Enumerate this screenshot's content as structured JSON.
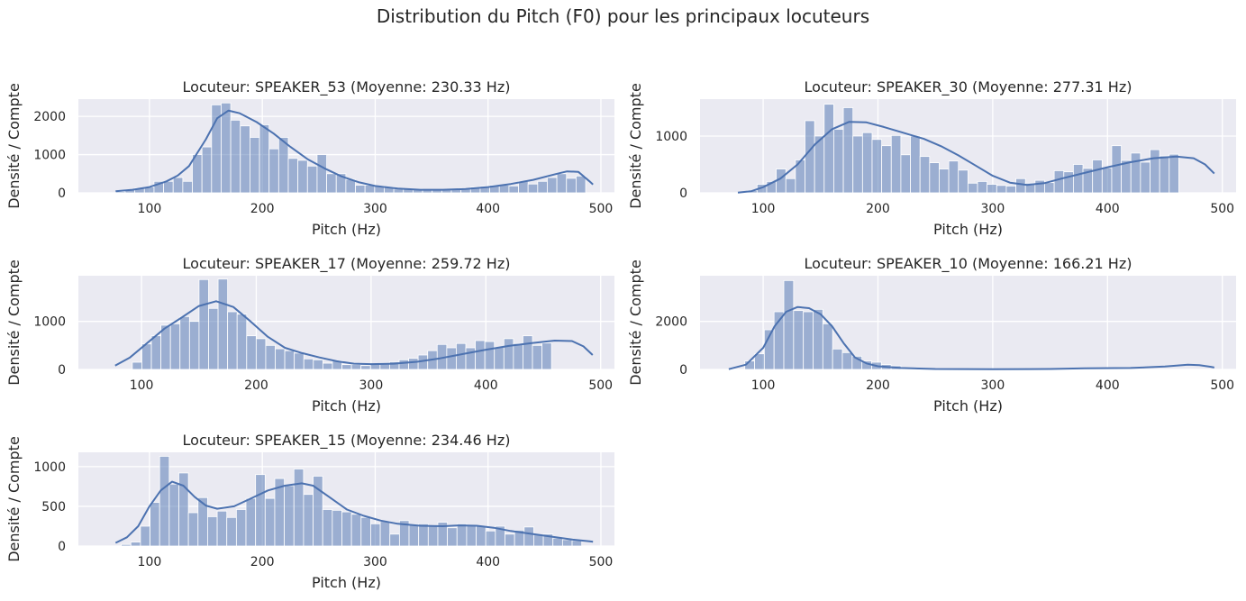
{
  "suptitle": "Distribution du Pitch (F0) pour les principaux locuteurs",
  "colors": {
    "bar": "#4C72B0",
    "background": "#EAEAF2",
    "grid": "#FFFFFF"
  },
  "chart_data": [
    {
      "type": "bar",
      "title": "Locuteur: SPEAKER_53 (Moyenne: 230.33 Hz)",
      "xlabel": "Pitch (Hz)",
      "ylabel": "Densité / Compte",
      "xlim": [
        37,
        512
      ],
      "ylim": [
        0,
        2450
      ],
      "xticks": [
        100,
        200,
        300,
        400,
        500
      ],
      "yticks": [
        0,
        1000,
        2000
      ],
      "bin_start": 70,
      "bin_width": 8.5,
      "values": [
        30,
        80,
        120,
        150,
        300,
        300,
        400,
        300,
        1000,
        1200,
        2300,
        2350,
        1900,
        1750,
        1450,
        1780,
        1150,
        1450,
        900,
        850,
        700,
        1000,
        500,
        500,
        350,
        200,
        200,
        180,
        150,
        100,
        100,
        100,
        80,
        70,
        80,
        100,
        120,
        150,
        170,
        200,
        200,
        180,
        300,
        230,
        300,
        400,
        500,
        380,
        440
      ],
      "kde": [
        [
          70,
          40
        ],
        [
          85,
          80
        ],
        [
          100,
          150
        ],
        [
          115,
          300
        ],
        [
          125,
          450
        ],
        [
          135,
          700
        ],
        [
          150,
          1400
        ],
        [
          160,
          1950
        ],
        [
          170,
          2150
        ],
        [
          180,
          2080
        ],
        [
          195,
          1850
        ],
        [
          210,
          1550
        ],
        [
          225,
          1200
        ],
        [
          240,
          880
        ],
        [
          255,
          640
        ],
        [
          270,
          430
        ],
        [
          285,
          280
        ],
        [
          300,
          180
        ],
        [
          320,
          110
        ],
        [
          340,
          80
        ],
        [
          360,
          80
        ],
        [
          380,
          100
        ],
        [
          400,
          150
        ],
        [
          420,
          230
        ],
        [
          440,
          340
        ],
        [
          460,
          490
        ],
        [
          470,
          560
        ],
        [
          480,
          550
        ],
        [
          490,
          300
        ],
        [
          493,
          220
        ]
      ]
    },
    {
      "type": "bar",
      "title": "Locuteur: SPEAKER_30 (Moyenne: 277.31 Hz)",
      "xlabel": "Pitch (Hz)",
      "ylabel": "Densité / Compte",
      "xlim": [
        45,
        512
      ],
      "ylim": [
        0,
        1650
      ],
      "xticks": [
        100,
        200,
        300,
        400,
        500
      ],
      "yticks": [
        0,
        1000
      ],
      "bin_start": 78,
      "bin_width": 8.35,
      "values": [
        10,
        40,
        150,
        200,
        420,
        250,
        580,
        1270,
        1000,
        1560,
        1120,
        1500,
        1000,
        1060,
        940,
        830,
        1010,
        670,
        1000,
        640,
        530,
        420,
        560,
        400,
        170,
        200,
        150,
        130,
        120,
        250,
        170,
        220,
        180,
        390,
        370,
        500,
        430,
        580,
        440,
        830,
        570,
        700,
        540,
        760,
        650,
        680
      ],
      "kde": [
        [
          78,
          5
        ],
        [
          90,
          30
        ],
        [
          100,
          100
        ],
        [
          115,
          250
        ],
        [
          130,
          500
        ],
        [
          145,
          850
        ],
        [
          160,
          1120
        ],
        [
          175,
          1250
        ],
        [
          190,
          1240
        ],
        [
          205,
          1160
        ],
        [
          220,
          1070
        ],
        [
          240,
          950
        ],
        [
          255,
          820
        ],
        [
          270,
          660
        ],
        [
          285,
          480
        ],
        [
          300,
          300
        ],
        [
          315,
          180
        ],
        [
          330,
          140
        ],
        [
          345,
          170
        ],
        [
          360,
          250
        ],
        [
          380,
          350
        ],
        [
          400,
          450
        ],
        [
          420,
          540
        ],
        [
          440,
          610
        ],
        [
          460,
          640
        ],
        [
          475,
          610
        ],
        [
          485,
          500
        ],
        [
          493,
          340
        ]
      ]
    },
    {
      "type": "bar",
      "title": "Locuteur: SPEAKER_17 (Moyenne: 259.72 Hz)",
      "xlabel": "Pitch (Hz)",
      "ylabel": "Densité / Compte",
      "xlim": [
        45,
        512
      ],
      "ylim": [
        0,
        1950
      ],
      "xticks": [
        100,
        200,
        300,
        400,
        500
      ],
      "yticks": [
        0,
        1000
      ],
      "bin_start": 92,
      "bin_width": 8.3,
      "values": [
        150,
        530,
        700,
        920,
        950,
        1100,
        1000,
        1870,
        1270,
        1880,
        1200,
        1150,
        700,
        640,
        500,
        430,
        390,
        340,
        220,
        200,
        130,
        180,
        100,
        100,
        80,
        120,
        130,
        160,
        200,
        230,
        300,
        390,
        520,
        450,
        540,
        450,
        600,
        580,
        460,
        640,
        540,
        700,
        500,
        550
      ],
      "kde": [
        [
          77,
          80
        ],
        [
          90,
          250
        ],
        [
          105,
          550
        ],
        [
          120,
          850
        ],
        [
          135,
          1080
        ],
        [
          150,
          1320
        ],
        [
          165,
          1420
        ],
        [
          180,
          1300
        ],
        [
          195,
          1000
        ],
        [
          210,
          680
        ],
        [
          225,
          450
        ],
        [
          240,
          340
        ],
        [
          255,
          250
        ],
        [
          270,
          170
        ],
        [
          285,
          120
        ],
        [
          300,
          110
        ],
        [
          320,
          120
        ],
        [
          340,
          160
        ],
        [
          360,
          230
        ],
        [
          380,
          320
        ],
        [
          400,
          410
        ],
        [
          420,
          490
        ],
        [
          440,
          550
        ],
        [
          460,
          600
        ],
        [
          475,
          590
        ],
        [
          485,
          480
        ],
        [
          493,
          300
        ]
      ]
    },
    {
      "type": "bar",
      "title": "Locuteur: SPEAKER_10 (Moyenne: 166.21 Hz)",
      "xlabel": "Pitch (Hz)",
      "ylabel": "Densité / Compte",
      "xlim": [
        45,
        512
      ],
      "ylim": [
        0,
        3900
      ],
      "xticks": [
        100,
        200,
        300,
        400,
        500
      ],
      "yticks": [
        0,
        2000
      ],
      "bin_start": 84,
      "bin_width": 8.5,
      "values": [
        350,
        650,
        1650,
        2400,
        3700,
        2450,
        2400,
        2500,
        1900,
        850,
        700,
        550,
        350,
        300,
        200,
        150
      ],
      "kde": [
        [
          70,
          10
        ],
        [
          85,
          200
        ],
        [
          100,
          900
        ],
        [
          110,
          1800
        ],
        [
          120,
          2400
        ],
        [
          130,
          2600
        ],
        [
          140,
          2550
        ],
        [
          150,
          2300
        ],
        [
          160,
          1800
        ],
        [
          170,
          1100
        ],
        [
          180,
          500
        ],
        [
          190,
          250
        ],
        [
          200,
          130
        ],
        [
          220,
          60
        ],
        [
          250,
          20
        ],
        [
          300,
          10
        ],
        [
          350,
          20
        ],
        [
          380,
          50
        ],
        [
          420,
          60
        ],
        [
          450,
          120
        ],
        [
          470,
          200
        ],
        [
          480,
          180
        ],
        [
          490,
          110
        ],
        [
          493,
          80
        ]
      ]
    },
    {
      "type": "bar",
      "title": "Locuteur: SPEAKER_15 (Moyenne: 234.46 Hz)",
      "xlabel": "Pitch (Hz)",
      "ylabel": "Densité / Compte",
      "xlim": [
        37,
        512
      ],
      "ylim": [
        0,
        1180
      ],
      "xticks": [
        100,
        200,
        300,
        400,
        500
      ],
      "yticks": [
        0,
        500,
        1000
      ],
      "bin_start": 75,
      "bin_width": 8.5,
      "values": [
        20,
        50,
        250,
        550,
        1130,
        780,
        920,
        420,
        610,
        370,
        440,
        360,
        460,
        600,
        900,
        600,
        850,
        760,
        970,
        650,
        880,
        460,
        450,
        430,
        400,
        360,
        280,
        310,
        150,
        320,
        260,
        280,
        250,
        300,
        230,
        280,
        260,
        250,
        190,
        250,
        150,
        200,
        240,
        140,
        150,
        100,
        80,
        70
      ],
      "kde": [
        [
          70,
          40
        ],
        [
          80,
          110
        ],
        [
          90,
          250
        ],
        [
          100,
          500
        ],
        [
          110,
          700
        ],
        [
          120,
          810
        ],
        [
          130,
          760
        ],
        [
          140,
          620
        ],
        [
          150,
          510
        ],
        [
          160,
          470
        ],
        [
          175,
          500
        ],
        [
          190,
          600
        ],
        [
          205,
          700
        ],
        [
          220,
          760
        ],
        [
          235,
          790
        ],
        [
          245,
          760
        ],
        [
          260,
          610
        ],
        [
          275,
          460
        ],
        [
          290,
          380
        ],
        [
          305,
          320
        ],
        [
          320,
          280
        ],
        [
          340,
          255
        ],
        [
          360,
          250
        ],
        [
          375,
          260
        ],
        [
          390,
          255
        ],
        [
          405,
          230
        ],
        [
          420,
          190
        ],
        [
          440,
          150
        ],
        [
          460,
          110
        ],
        [
          475,
          80
        ],
        [
          490,
          60
        ],
        [
          493,
          55
        ]
      ]
    }
  ]
}
